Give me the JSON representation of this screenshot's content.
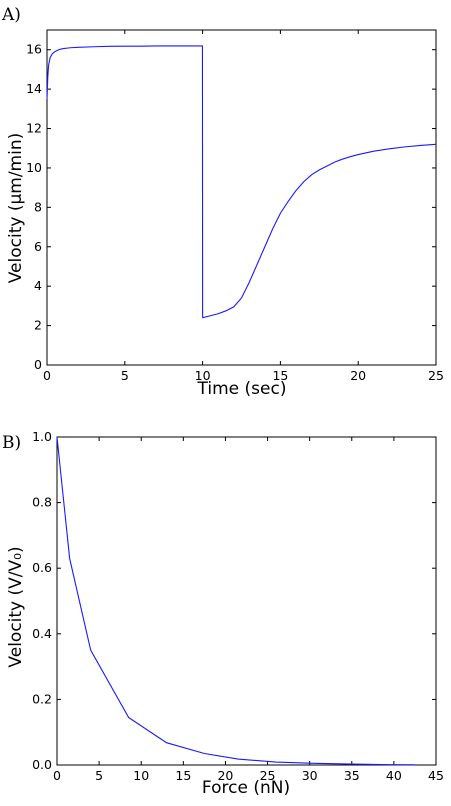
{
  "chart_data": [
    {
      "type": "line",
      "panel_label": "A)",
      "title": "",
      "xlabel": "Time (sec)",
      "ylabel": "Velocity (μm/min)",
      "xlim": [
        0,
        25
      ],
      "ylim": [
        0,
        17
      ],
      "xticks": [
        0,
        5,
        10,
        15,
        20,
        25
      ],
      "yticks": [
        0,
        2,
        4,
        6,
        8,
        10,
        12,
        14,
        16
      ],
      "grid": false,
      "series": [
        {
          "color": "#1a1aff",
          "x": [
            0,
            0.05,
            0.1,
            0.2,
            0.35,
            0.5,
            0.75,
            1,
            1.5,
            2,
            3,
            4,
            5,
            6,
            7,
            8,
            9,
            9.99,
            10.0,
            10.01,
            10.5,
            11,
            11.5,
            12,
            12.5,
            13,
            13.5,
            14,
            14.5,
            15,
            15.5,
            16,
            16.5,
            17,
            17.5,
            18,
            18.5,
            19,
            19.5,
            20,
            21,
            22,
            23,
            24,
            25
          ],
          "y": [
            13.5,
            14.6,
            15.2,
            15.6,
            15.8,
            15.9,
            16.0,
            16.05,
            16.1,
            16.12,
            16.15,
            16.17,
            16.18,
            16.18,
            16.19,
            16.19,
            16.19,
            16.19,
            2.5,
            2.4,
            2.5,
            2.6,
            2.75,
            2.95,
            3.4,
            4.2,
            5.1,
            6.0,
            6.9,
            7.7,
            8.3,
            8.85,
            9.3,
            9.65,
            9.9,
            10.1,
            10.3,
            10.45,
            10.57,
            10.68,
            10.85,
            10.97,
            11.07,
            11.14,
            11.2
          ]
        }
      ]
    },
    {
      "type": "line",
      "panel_label": "B)",
      "title": "",
      "xlabel": "Force (nN)",
      "ylabel": "Velocity (V/V₀)",
      "xlim": [
        0,
        45
      ],
      "ylim": [
        0,
        1.0
      ],
      "xticks": [
        0,
        5,
        10,
        15,
        20,
        25,
        30,
        35,
        40,
        45
      ],
      "yticks": [
        0.0,
        0.2,
        0.4,
        0.6,
        0.8,
        1.0
      ],
      "grid": false,
      "series": [
        {
          "color": "#1a1aff",
          "x": [
            0,
            1.5,
            4,
            8.5,
            13,
            17.5,
            21.5,
            26,
            30.5,
            35,
            39.5,
            42.5
          ],
          "y": [
            1.0,
            0.63,
            0.35,
            0.145,
            0.068,
            0.035,
            0.018,
            0.009,
            0.005,
            0.003,
            0.001,
            0.0005
          ]
        }
      ]
    }
  ]
}
